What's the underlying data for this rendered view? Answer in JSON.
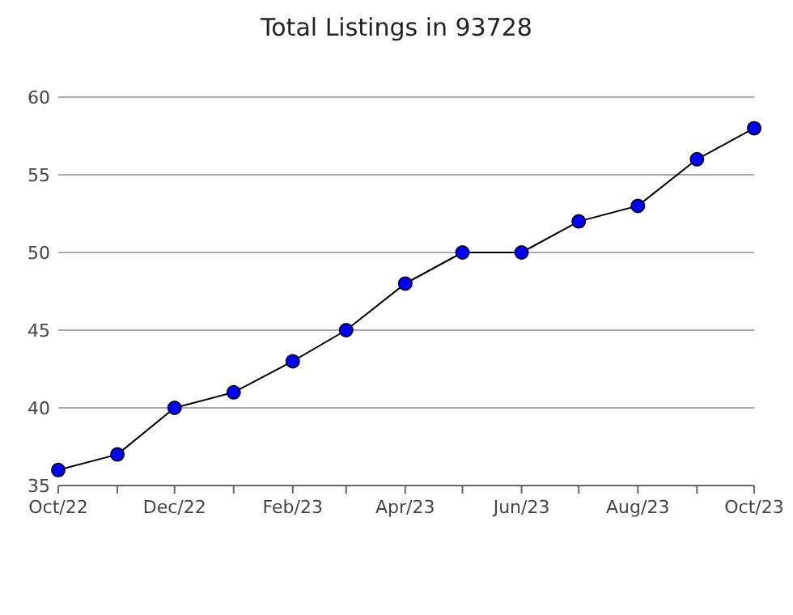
{
  "chart_data": {
    "type": "line",
    "title": "Total Listings in 93728",
    "x": [
      "2022-10",
      "2022-11",
      "2022-12",
      "2023-01",
      "2023-02",
      "2023-03",
      "2023-04",
      "2023-05",
      "2023-06",
      "2023-07",
      "2023-08",
      "2023-09",
      "2023-10"
    ],
    "series": [
      {
        "color": "#0000ff",
        "values": [
          36,
          37,
          40,
          41,
          43,
          45,
          48,
          50,
          50,
          52,
          53,
          56,
          58
        ]
      }
    ],
    "xlim": [
      "2022-10",
      "2023-10"
    ],
    "xticks": [
      {
        "value": "2022-10",
        "label": "Oct/22"
      },
      {
        "value": "2022-11",
        "label": null
      },
      {
        "value": "2022-12",
        "label": "Dec/22"
      },
      {
        "value": "2023-01",
        "label": null
      },
      {
        "value": "2023-02",
        "label": "Feb/23"
      },
      {
        "value": "2023-03",
        "label": null
      },
      {
        "value": "2023-04",
        "label": "Apr/23"
      },
      {
        "value": "2023-05",
        "label": null
      },
      {
        "value": "2023-06",
        "label": "Jun/23"
      },
      {
        "value": "2023-07",
        "label": null
      },
      {
        "value": "2023-08",
        "label": "Aug/23"
      },
      {
        "value": "2023-09",
        "label": null
      },
      {
        "value": "2023-10",
        "label": "Oct/23"
      }
    ],
    "ylim": [
      35,
      60
    ],
    "yticks": [
      35,
      40,
      45,
      50,
      55,
      60
    ],
    "grid": "y",
    "marker": "circle",
    "line_style": "solid"
  }
}
